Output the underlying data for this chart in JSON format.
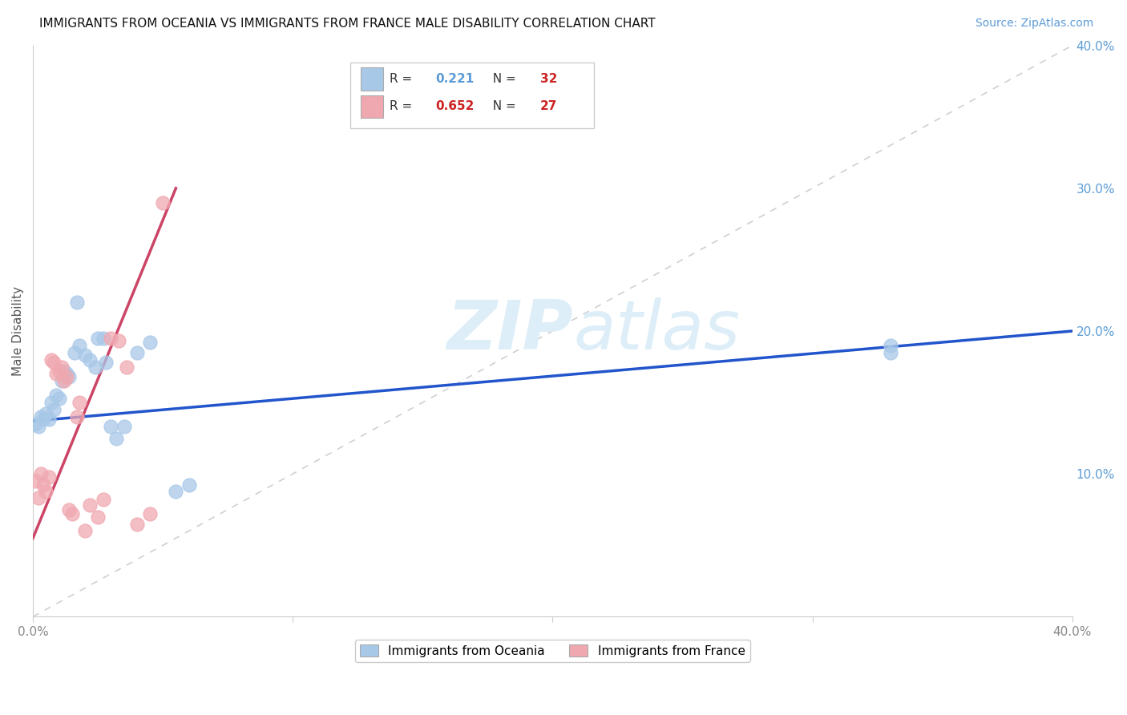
{
  "title": "IMMIGRANTS FROM OCEANIA VS IMMIGRANTS FROM FRANCE MALE DISABILITY CORRELATION CHART",
  "source": "Source: ZipAtlas.com",
  "ylabel_label": "Male Disability",
  "x_min": 0.0,
  "x_max": 0.4,
  "y_min": 0.0,
  "y_max": 0.4,
  "x_ticks": [
    0.0,
    0.1,
    0.2,
    0.3,
    0.4
  ],
  "x_tick_labels": [
    "0.0%",
    "",
    "",
    "",
    "40.0%"
  ],
  "y_ticks": [
    0.1,
    0.2,
    0.3,
    0.4
  ],
  "y_tick_labels": [
    "10.0%",
    "20.0%",
    "30.0%",
    "40.0%"
  ],
  "R_oceania": 0.221,
  "N_oceania": 32,
  "R_france": 0.652,
  "N_france": 27,
  "color_oceania": "#a8c8e8",
  "color_france": "#f0a8b0",
  "color_blue_line": "#2255cc",
  "color_pink_line": "#cc4466",
  "color_diagonal": "#c8c8c8",
  "watermark_color": "#ddeef8",
  "oceania_x": [
    0.001,
    0.002,
    0.003,
    0.004,
    0.005,
    0.006,
    0.007,
    0.008,
    0.009,
    0.01,
    0.011,
    0.012,
    0.013,
    0.014,
    0.016,
    0.017,
    0.018,
    0.02,
    0.022,
    0.024,
    0.025,
    0.027,
    0.028,
    0.03,
    0.032,
    0.035,
    0.04,
    0.045,
    0.055,
    0.06,
    0.33,
    0.33
  ],
  "oceania_y": [
    0.135,
    0.133,
    0.14,
    0.138,
    0.142,
    0.138,
    0.15,
    0.145,
    0.155,
    0.153,
    0.165,
    0.172,
    0.17,
    0.168,
    0.185,
    0.22,
    0.19,
    0.183,
    0.18,
    0.175,
    0.195,
    0.195,
    0.178,
    0.133,
    0.125,
    0.133,
    0.185,
    0.192,
    0.088,
    0.092,
    0.19,
    0.185
  ],
  "france_x": [
    0.001,
    0.002,
    0.003,
    0.004,
    0.005,
    0.006,
    0.007,
    0.008,
    0.009,
    0.01,
    0.011,
    0.012,
    0.013,
    0.014,
    0.015,
    0.017,
    0.018,
    0.02,
    0.022,
    0.025,
    0.027,
    0.03,
    0.033,
    0.036,
    0.04,
    0.045,
    0.05
  ],
  "france_y": [
    0.095,
    0.083,
    0.1,
    0.092,
    0.088,
    0.098,
    0.18,
    0.178,
    0.17,
    0.172,
    0.175,
    0.165,
    0.168,
    0.075,
    0.072,
    0.14,
    0.15,
    0.06,
    0.078,
    0.07,
    0.082,
    0.195,
    0.193,
    0.175,
    0.065,
    0.072,
    0.29
  ],
  "blue_line_x": [
    0.0,
    0.4
  ],
  "blue_line_y": [
    0.137,
    0.2
  ],
  "pink_line_x": [
    0.0,
    0.055
  ],
  "pink_line_y": [
    0.055,
    0.3
  ]
}
